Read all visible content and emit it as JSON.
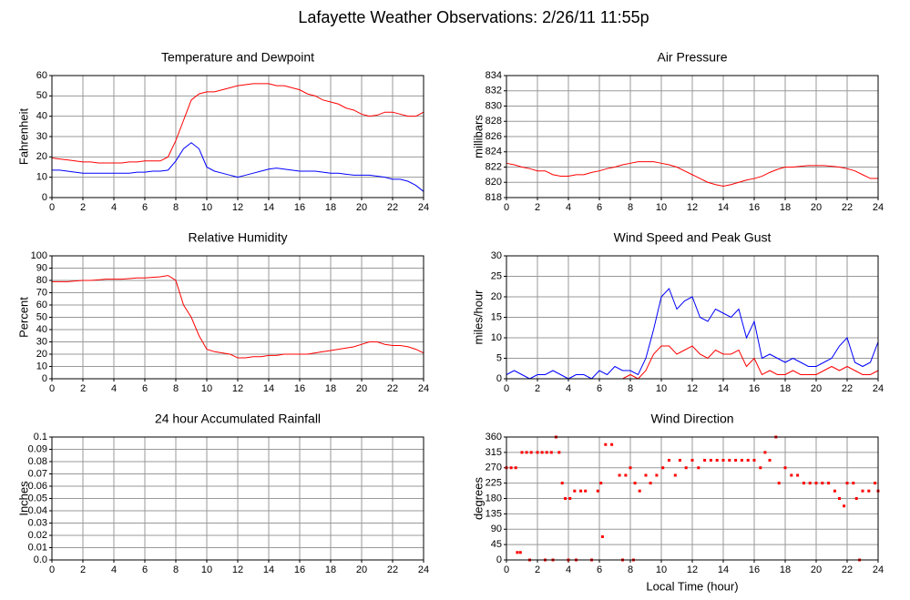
{
  "title": "Lafayette Weather Observations: 2/26/11 11:55p",
  "chart_data": [
    {
      "type": "line",
      "title": "Temperature and Dewpoint",
      "ylabel": "Fahrenheit",
      "x": [
        0,
        0.5,
        1,
        1.5,
        2,
        2.5,
        3,
        3.5,
        4,
        4.5,
        5,
        5.5,
        6,
        6.5,
        7,
        7.5,
        8,
        8.5,
        9,
        9.5,
        10,
        10.5,
        11,
        11.5,
        12,
        12.5,
        13,
        13.5,
        14,
        14.5,
        15,
        15.5,
        16,
        16.5,
        17,
        17.5,
        18,
        18.5,
        19,
        19.5,
        20,
        20.5,
        21,
        21.5,
        22,
        22.5,
        23,
        23.5,
        24
      ],
      "series": [
        {
          "color": "#ff0000",
          "values": [
            19.5,
            19,
            18.5,
            18,
            17.5,
            17.5,
            17,
            17,
            17,
            17,
            17.5,
            17.5,
            18,
            18,
            18,
            20,
            28,
            38,
            48,
            51,
            52,
            52,
            53,
            54,
            55,
            55.5,
            56,
            56,
            56,
            55,
            55,
            54,
            53,
            51,
            50,
            48,
            47,
            46,
            44,
            43,
            41,
            40,
            40.5,
            42,
            42,
            41,
            40,
            40,
            42
          ]
        },
        {
          "color": "#0000ff",
          "values": [
            13.5,
            13.5,
            13,
            12.5,
            12,
            12,
            12,
            12,
            12,
            12,
            12,
            12.5,
            12.5,
            13,
            13,
            13.5,
            18,
            24,
            27,
            24,
            15,
            13,
            12,
            11,
            10,
            11,
            12,
            13,
            14,
            14.5,
            14,
            13.5,
            13,
            13,
            13,
            12.5,
            12,
            12,
            11.5,
            11,
            11,
            11,
            10.5,
            10,
            9,
            9,
            8,
            6,
            3
          ]
        }
      ],
      "xlim": [
        0,
        24
      ],
      "xticks": [
        0,
        2,
        4,
        6,
        8,
        10,
        12,
        14,
        16,
        18,
        20,
        22,
        24
      ],
      "ylim": [
        0,
        60
      ],
      "yticks": [
        0,
        10,
        20,
        30,
        40,
        50,
        60
      ],
      "grid": true
    },
    {
      "type": "line",
      "title": "Air Pressure",
      "ylabel": "millibars",
      "x": [
        0,
        0.5,
        1,
        1.5,
        2,
        2.5,
        3,
        3.5,
        4,
        4.5,
        5,
        5.5,
        6,
        6.5,
        7,
        7.5,
        8,
        8.5,
        9,
        9.5,
        10,
        10.5,
        11,
        11.5,
        12,
        12.5,
        13,
        13.5,
        14,
        14.5,
        15,
        15.5,
        16,
        16.5,
        17,
        17.5,
        18,
        18.5,
        19,
        19.5,
        20,
        20.5,
        21,
        21.5,
        22,
        22.5,
        23,
        23.5,
        24
      ],
      "series": [
        {
          "color": "#ff0000",
          "values": [
            822.5,
            822.3,
            822,
            821.8,
            821.5,
            821.5,
            821,
            820.8,
            820.8,
            821,
            821,
            821.3,
            821.5,
            821.8,
            822,
            822.3,
            822.5,
            822.7,
            822.7,
            822.7,
            822.5,
            822.3,
            822,
            821.5,
            821,
            820.5,
            820,
            819.7,
            819.5,
            819.7,
            820,
            820.3,
            820.5,
            820.8,
            821.3,
            821.7,
            822,
            822,
            822.1,
            822.2,
            822.2,
            822.2,
            822.1,
            822,
            821.8,
            821.5,
            821,
            820.5,
            820.5
          ]
        }
      ],
      "xlim": [
        0,
        24
      ],
      "xticks": [
        0,
        2,
        4,
        6,
        8,
        10,
        12,
        14,
        16,
        18,
        20,
        22,
        24
      ],
      "ylim": [
        818,
        834
      ],
      "yticks": [
        818,
        820,
        822,
        824,
        826,
        828,
        830,
        832,
        834
      ],
      "grid": true
    },
    {
      "type": "line",
      "title": "Relative Humidity",
      "ylabel": "Percent",
      "x": [
        0,
        0.5,
        1,
        1.5,
        2,
        2.5,
        3,
        3.5,
        4,
        4.5,
        5,
        5.5,
        6,
        6.5,
        7,
        7.5,
        8,
        8.5,
        9,
        9.5,
        10,
        10.5,
        11,
        11.5,
        12,
        12.5,
        13,
        13.5,
        14,
        14.5,
        15,
        15.5,
        16,
        16.5,
        17,
        17.5,
        18,
        18.5,
        19,
        19.5,
        20,
        20.5,
        21,
        21.5,
        22,
        22.5,
        23,
        23.5,
        24
      ],
      "series": [
        {
          "color": "#ff0000",
          "values": [
            79,
            79,
            79,
            79.5,
            80,
            80,
            80.5,
            81,
            81,
            81,
            81.5,
            82,
            82,
            82.5,
            83,
            84,
            80,
            60,
            50,
            35,
            24,
            22,
            21,
            20,
            17,
            17,
            18,
            18,
            19,
            19,
            20,
            20,
            20,
            20,
            21,
            22,
            23,
            24,
            25,
            26,
            28,
            30,
            30,
            28,
            27,
            27,
            26,
            24,
            21
          ]
        }
      ],
      "xlim": [
        0,
        24
      ],
      "xticks": [
        0,
        2,
        4,
        6,
        8,
        10,
        12,
        14,
        16,
        18,
        20,
        22,
        24
      ],
      "ylim": [
        0,
        100
      ],
      "yticks": [
        0,
        10,
        20,
        30,
        40,
        50,
        60,
        70,
        80,
        90,
        100
      ],
      "grid": true
    },
    {
      "type": "line",
      "title": "Wind Speed and Peak Gust",
      "ylabel": "miles/hour",
      "x": [
        0,
        0.5,
        1,
        1.5,
        2,
        2.5,
        3,
        3.5,
        4,
        4.5,
        5,
        5.5,
        6,
        6.5,
        7,
        7.5,
        8,
        8.5,
        9,
        9.5,
        10,
        10.5,
        11,
        11.5,
        12,
        12.5,
        13,
        13.5,
        14,
        14.5,
        15,
        15.5,
        16,
        16.5,
        17,
        17.5,
        18,
        18.5,
        19,
        19.5,
        20,
        20.5,
        21,
        21.5,
        22,
        22.5,
        23,
        23.5,
        24
      ],
      "series": [
        {
          "color": "#0000ff",
          "values": [
            1,
            2,
            1,
            0,
            1,
            1,
            2,
            1,
            0,
            1,
            1,
            0,
            2,
            1,
            3,
            2,
            2,
            1,
            5,
            12,
            20,
            22,
            17,
            19,
            20,
            15,
            14,
            17,
            16,
            15,
            17,
            10,
            14,
            5,
            6,
            5,
            4,
            5,
            4,
            3,
            3,
            4,
            5,
            8,
            10,
            4,
            3,
            4,
            9
          ]
        },
        {
          "color": "#ff0000",
          "values": [
            0,
            0,
            0,
            0,
            0,
            0,
            0,
            0,
            0,
            0,
            0,
            0,
            0,
            0,
            0,
            0,
            1,
            0,
            2,
            6,
            8,
            8,
            6,
            7,
            8,
            6,
            5,
            7,
            6,
            6,
            7,
            3,
            5,
            1,
            2,
            1,
            1,
            2,
            1,
            1,
            1,
            2,
            3,
            2,
            3,
            2,
            1,
            1,
            2
          ]
        }
      ],
      "xlim": [
        0,
        24
      ],
      "xticks": [
        0,
        2,
        4,
        6,
        8,
        10,
        12,
        14,
        16,
        18,
        20,
        22,
        24
      ],
      "ylim": [
        0,
        30
      ],
      "yticks": [
        0,
        5,
        10,
        15,
        20,
        25,
        30
      ],
      "grid": true
    },
    {
      "type": "line",
      "title": "24 hour Accumulated Rainfall",
      "ylabel": "Inches",
      "x": [
        0,
        24
      ],
      "series": [
        {
          "color": "#ff0000",
          "values": [
            0,
            0
          ]
        }
      ],
      "xlim": [
        0,
        24
      ],
      "xticks": [
        0,
        2,
        4,
        6,
        8,
        10,
        12,
        14,
        16,
        18,
        20,
        22,
        24
      ],
      "ylim": [
        0,
        0.1
      ],
      "yticks": [
        {
          "value": 0,
          "label": "0.0"
        },
        0.01,
        0.02,
        0.03,
        0.04,
        0.05,
        0.06,
        0.07,
        0.08,
        0.09,
        0.1
      ],
      "grid": true
    },
    {
      "type": "scatter",
      "title": "Wind Direction",
      "ylabel": "degrees",
      "xlabel": "Local Time (hour)",
      "x": [
        0,
        0.3,
        0.6,
        0.7,
        0.9,
        1,
        1.3,
        1.5,
        1.6,
        2,
        2.3,
        2.5,
        2.6,
        2.9,
        3,
        3.2,
        3.4,
        3.6,
        3.8,
        4,
        4.1,
        4.4,
        4.5,
        4.8,
        5.1,
        5.5,
        5.9,
        6.1,
        6.2,
        6.4,
        6.8,
        7.3,
        7.5,
        7.7,
        8,
        8.2,
        8.3,
        8.6,
        9,
        9.3,
        9.7,
        10.1,
        10.5,
        10.9,
        11.2,
        11.6,
        12,
        12.4,
        12.8,
        13.2,
        13.6,
        14,
        14.4,
        14.8,
        15.2,
        15.6,
        16,
        16.4,
        16.7,
        17,
        17.4,
        17.6,
        18,
        18.4,
        18.8,
        19.2,
        19.6,
        20,
        20.4,
        20.8,
        21.2,
        21.5,
        21.8,
        22,
        22.4,
        22.6,
        22.8,
        23,
        23.4,
        23.8,
        24
      ],
      "series": [
        {
          "color": "#ff0000",
          "values": [
            270,
            270,
            270,
            22,
            22,
            315,
            315,
            0,
            315,
            315,
            315,
            0,
            315,
            315,
            0,
            360,
            315,
            225,
            180,
            0,
            180,
            202,
            0,
            202,
            202,
            0,
            202,
            225,
            68,
            338,
            338,
            248,
            0,
            248,
            270,
            0,
            225,
            202,
            248,
            225,
            248,
            270,
            292,
            248,
            292,
            270,
            292,
            270,
            292,
            292,
            292,
            292,
            292,
            292,
            292,
            292,
            292,
            270,
            315,
            292,
            360,
            225,
            270,
            248,
            248,
            225,
            225,
            225,
            225,
            225,
            202,
            180,
            158,
            225,
            225,
            180,
            0,
            202,
            202,
            225,
            202
          ]
        }
      ],
      "xlim": [
        0,
        24
      ],
      "xticks": [
        0,
        2,
        4,
        6,
        8,
        10,
        12,
        14,
        16,
        18,
        20,
        22,
        24
      ],
      "ylim": [
        0,
        360
      ],
      "yticks": [
        0,
        45,
        90,
        135,
        180,
        225,
        270,
        315,
        360
      ],
      "grid": true
    }
  ]
}
